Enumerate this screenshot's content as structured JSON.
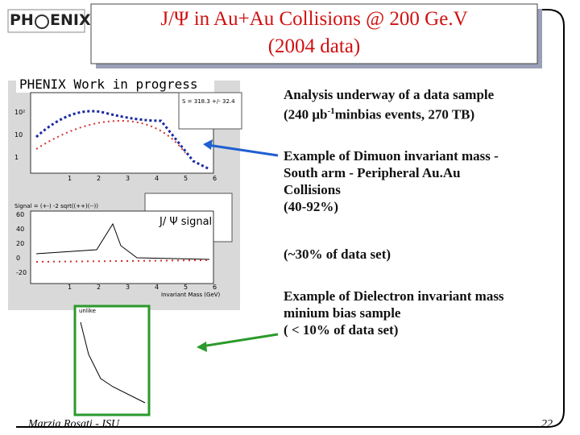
{
  "header": {
    "logo_left": "PH",
    "logo_right": "ENIX",
    "title_line1": "J/Ψ  in Au+Au Collisions @ 200 Ge.V",
    "title_line2": "(2004 data)"
  },
  "plot": {
    "banner": "PHENIX Work in progress",
    "signal_count": "S = 318.3 +/- 32.4",
    "signal_formula": "Signal = (+-) -2 sqrt((++)(--))",
    "callout": "J/ Ψ signal",
    "x_axis_label": "Invariant Mass (GeV)",
    "upper_yticks": [
      "10²",
      "10",
      "1"
    ],
    "upper_xticks": [
      "1",
      "2",
      "3",
      "4",
      "5",
      "6"
    ],
    "lower_yticks": [
      "60",
      "40",
      "20",
      "0",
      "-20"
    ],
    "lower_xticks": [
      "1",
      "2",
      "3",
      "4",
      "5",
      "6"
    ],
    "inset_label": "unlike"
  },
  "bullets": [
    {
      "parts": [
        "Analysis underway of a data sample",
        "(240 ",
        "μb",
        "-1",
        "minbias  events, 270 TB)"
      ]
    },
    {
      "lines": [
        "Example of Dimuon invariant mass -",
        "South arm - Peripheral Au.Au",
        "Collisions",
        "(40-92%)"
      ]
    },
    {
      "lines": [
        "(~30% of data set)"
      ]
    },
    {
      "lines": [
        "Example of Dielectron invariant mass",
        "minium bias sample",
        "( < 10% of data set)"
      ]
    }
  ],
  "footer": {
    "author": "Marzia Rosati - ISU",
    "page": "22"
  }
}
